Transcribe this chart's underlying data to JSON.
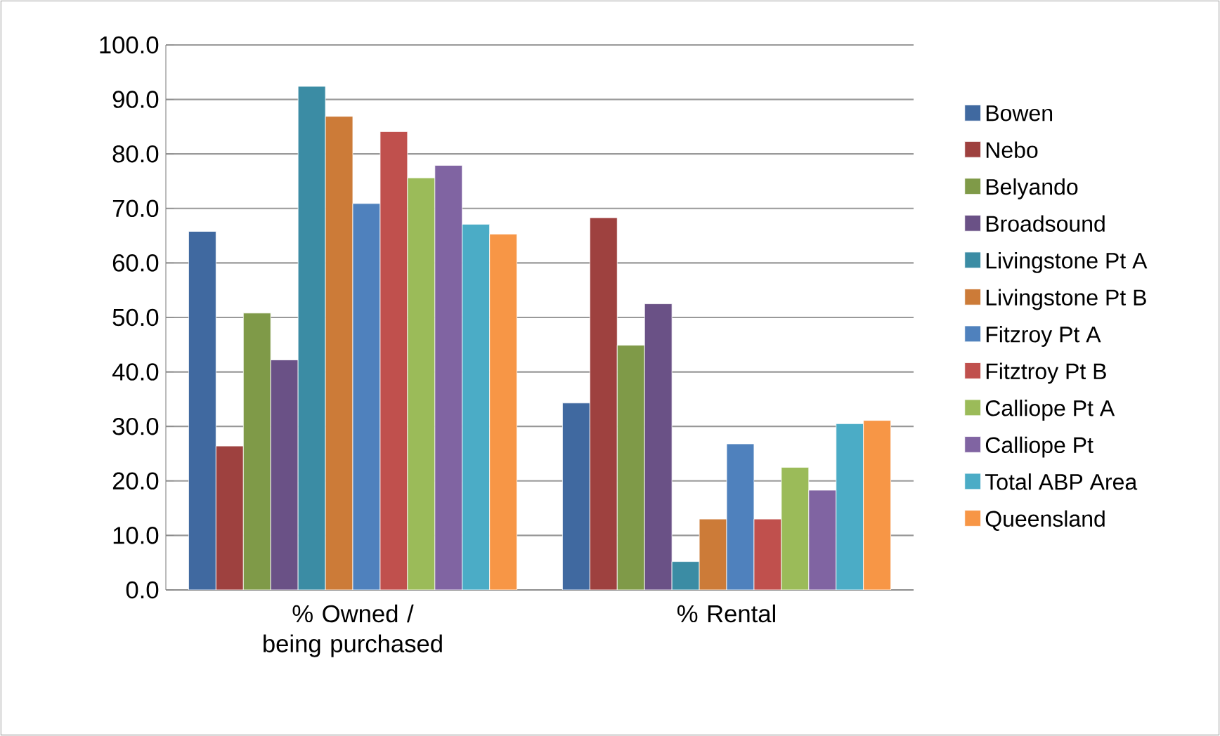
{
  "chart_data": {
    "type": "bar",
    "categories": [
      "% Owned / being purchased",
      "% Rental"
    ],
    "ylim": [
      0,
      100
    ],
    "yticks": [
      {
        "value": 0,
        "label": "0.0"
      },
      {
        "value": 10,
        "label": "10.0"
      },
      {
        "value": 20,
        "label": "20.0"
      },
      {
        "value": 30,
        "label": "30.0"
      },
      {
        "value": 40,
        "label": "40.0"
      },
      {
        "value": 50,
        "label": "50.0"
      },
      {
        "value": 60,
        "label": "60.0"
      },
      {
        "value": 70,
        "label": "70.0"
      },
      {
        "value": 80,
        "label": "80.0"
      },
      {
        "value": 90,
        "label": "90.0"
      },
      {
        "value": 100,
        "label": "100.0"
      }
    ],
    "grid": "y",
    "legend": "right",
    "series": [
      {
        "name": "Bowen",
        "color": "#4069a0",
        "values": [
          65.8,
          34.3
        ]
      },
      {
        "name": "Nebo",
        "color": "#9e413f",
        "values": [
          26.4,
          68.3
        ]
      },
      {
        "name": "Belyando",
        "color": "#7f9a48",
        "values": [
          50.8,
          44.9
        ]
      },
      {
        "name": "Broadsound",
        "color": "#6a5186",
        "values": [
          42.2,
          52.5
        ]
      },
      {
        "name": "Livingstone Pt A",
        "color": "#3b8ca4",
        "values": [
          92.4,
          5.2
        ]
      },
      {
        "name": "Livingstone Pt B",
        "color": "#cc7b38",
        "values": [
          86.9,
          13.0
        ]
      },
      {
        "name": "Fitzroy Pt A",
        "color": "#4f81bd",
        "values": [
          70.9,
          26.8
        ]
      },
      {
        "name": "Fitztroy Pt B",
        "color": "#c0504d",
        "values": [
          84.1,
          13.0
        ]
      },
      {
        "name": "Calliope Pt A",
        "color": "#9bbb59",
        "values": [
          75.6,
          22.5
        ]
      },
      {
        "name": "Calliope Pt",
        "color": "#8064a2",
        "values": [
          77.9,
          18.3
        ]
      },
      {
        "name": "Total ABP Area",
        "color": "#4bacc6",
        "values": [
          67.1,
          30.5
        ]
      },
      {
        "name": "Queensland",
        "color": "#f79646",
        "values": [
          65.3,
          31.1
        ]
      }
    ]
  }
}
